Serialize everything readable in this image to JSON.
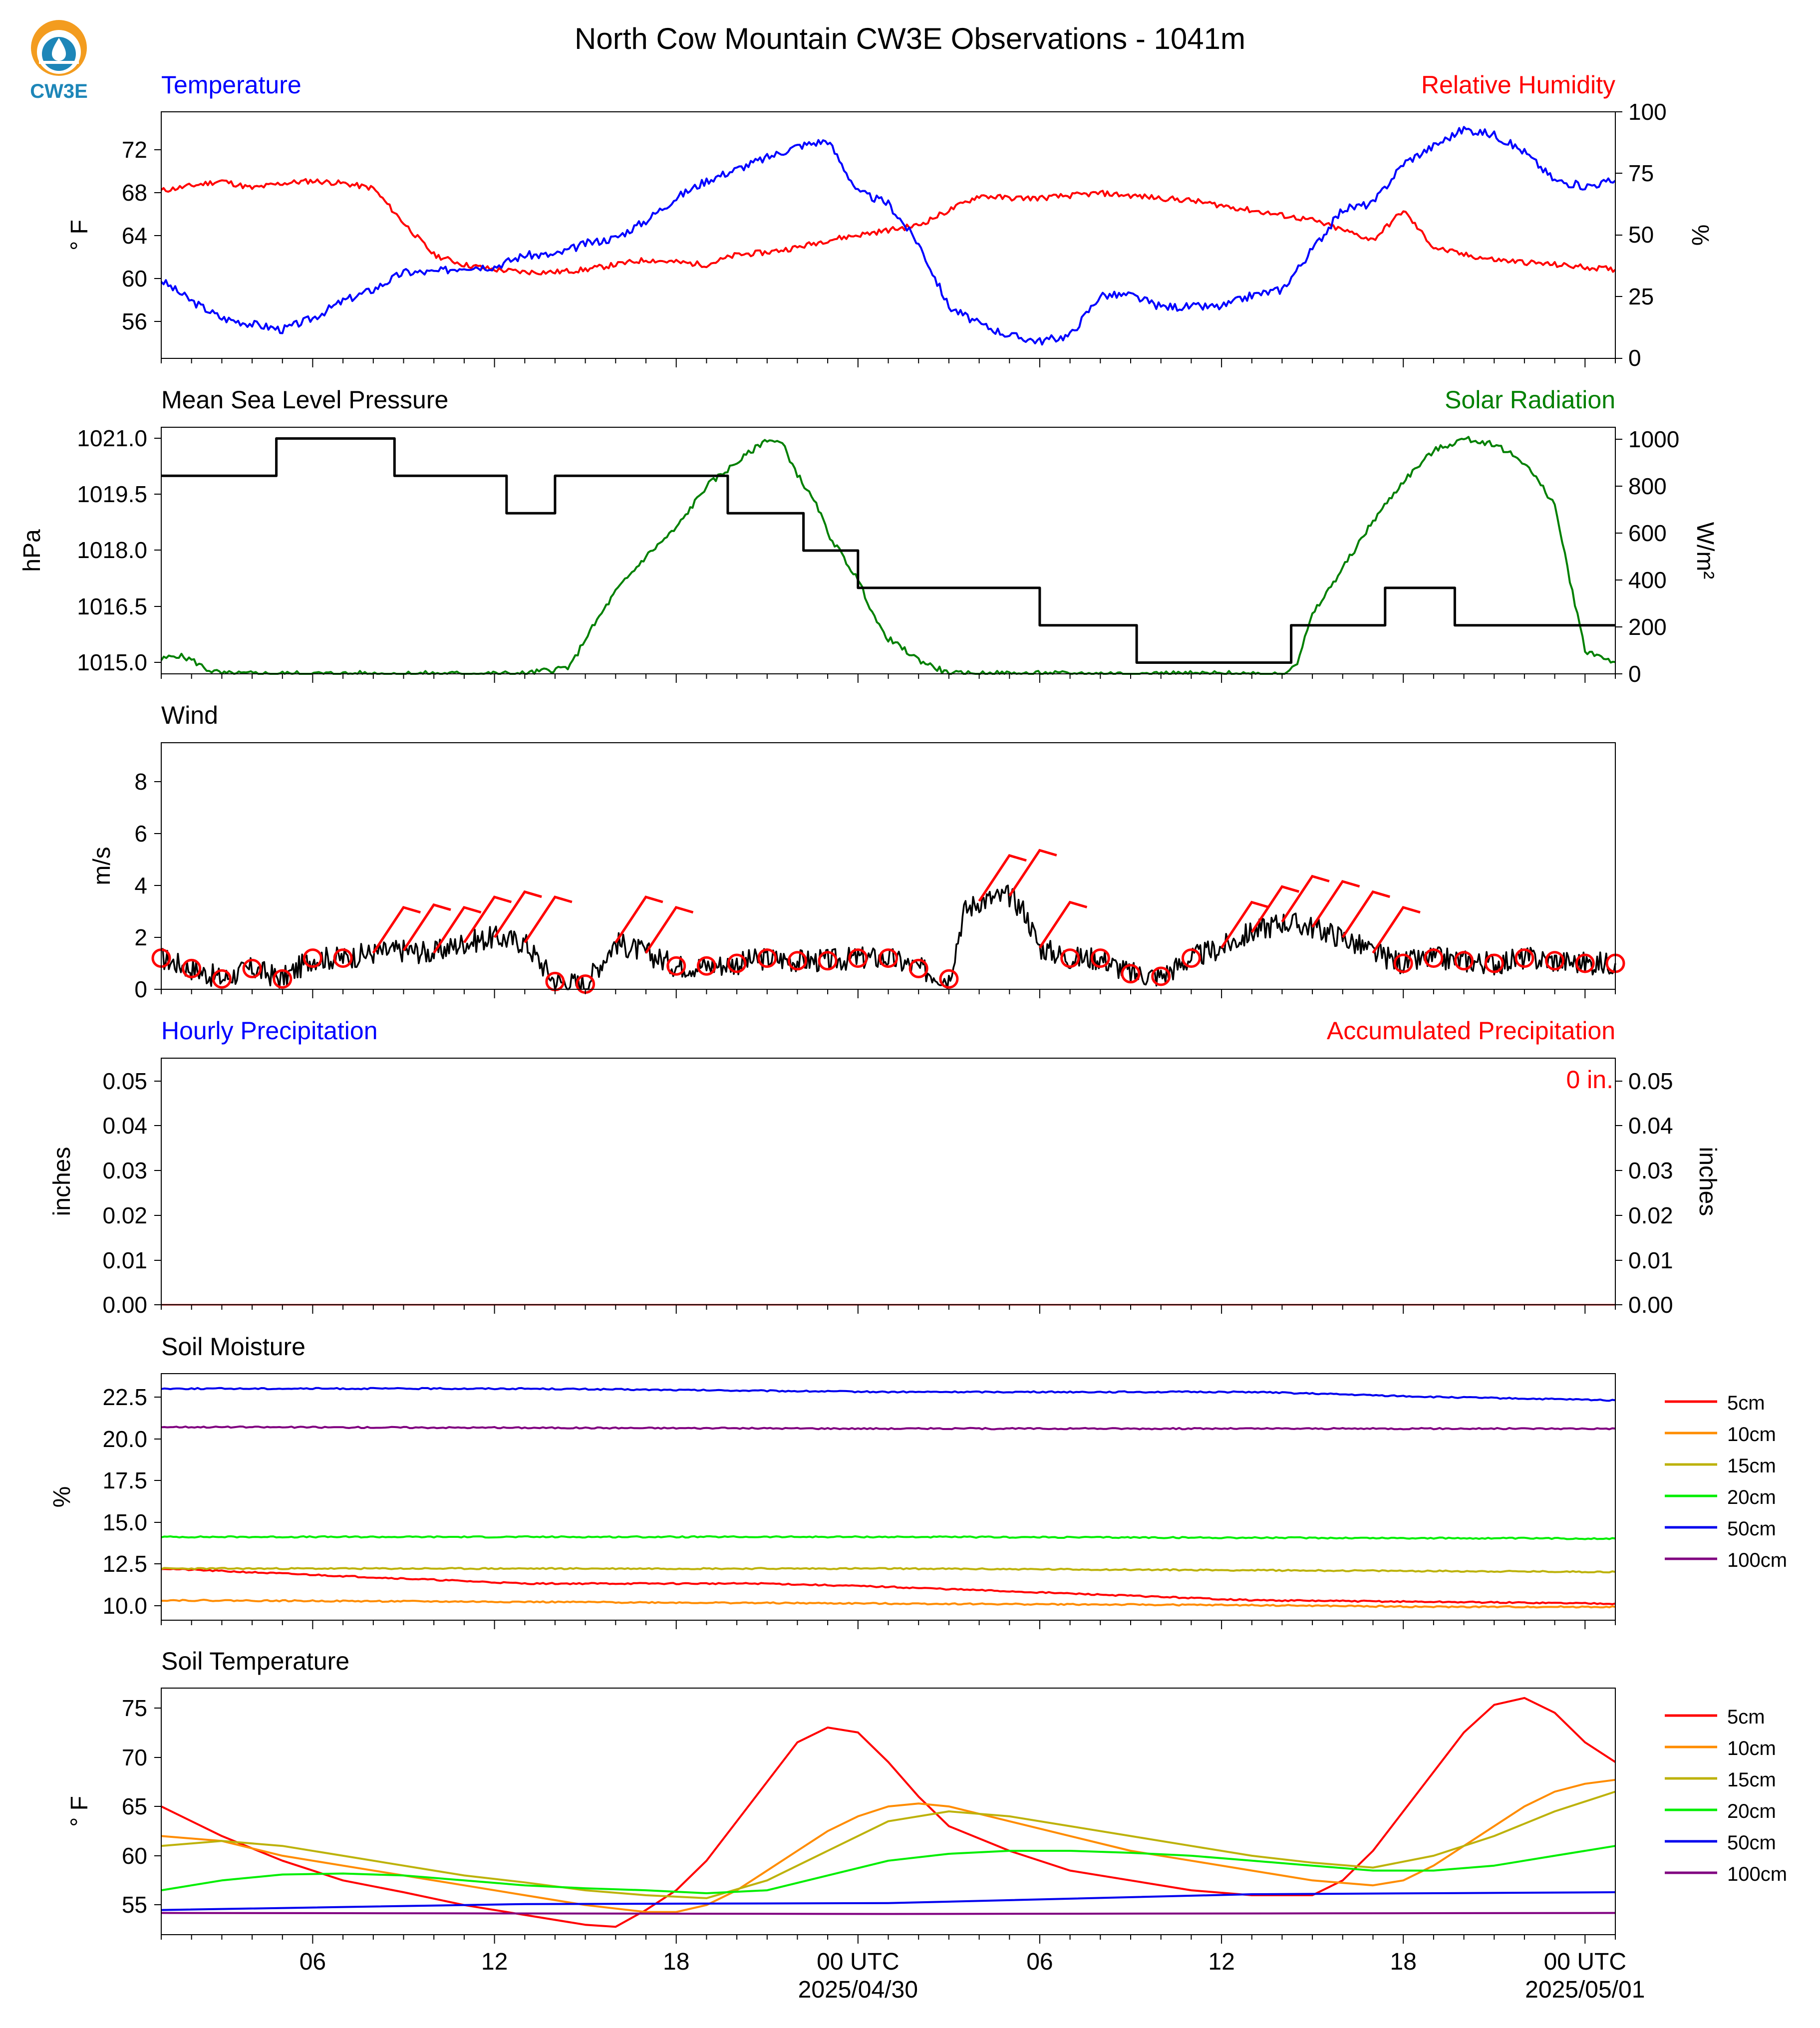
{
  "title": "North Cow Mountain CW3E Observations - 1041m",
  "logo": {
    "text": "CW3E",
    "colors": {
      "orange": "#f39c1f",
      "blue": "#1d86b8"
    }
  },
  "colors": {
    "temperature": "#0000ff",
    "humidity": "#ff0000",
    "pressure": "#000000",
    "solar": "#008000",
    "wind": "#000000",
    "barbs": "#ff0000"
  },
  "time_axis": {
    "range_hours": [
      0,
      48
    ],
    "ticks": [
      {
        "h": 5,
        "label": "06"
      },
      {
        "h": 11,
        "label": "12"
      },
      {
        "h": 17,
        "label": "18"
      },
      {
        "h": 23,
        "label": "00 UTC",
        "date": "2025/04/30"
      },
      {
        "h": 29,
        "label": "06"
      },
      {
        "h": 35,
        "label": "12"
      },
      {
        "h": 41,
        "label": "18"
      },
      {
        "h": 47,
        "label": "00 UTC",
        "date": "2025/05/01"
      }
    ]
  },
  "panels": {
    "temperature": {
      "left_title": "Temperature",
      "right_title": "Relative Humidity",
      "left_unit": "° F",
      "right_unit": "%",
      "left_ticks": [
        "56",
        "60",
        "64",
        "68",
        "72"
      ],
      "right_ticks": [
        "0",
        "25",
        "50",
        "75",
        "100"
      ]
    },
    "pressure": {
      "left_title": "Mean Sea Level Pressure",
      "right_title": "Solar Radiation",
      "left_unit": "hPa",
      "right_unit": "W/m²",
      "left_ticks": [
        "1015.0",
        "1016.5",
        "1018.0",
        "1019.5",
        "1021.0"
      ],
      "right_ticks": [
        "0",
        "200",
        "400",
        "600",
        "800",
        "1000"
      ]
    },
    "wind": {
      "title": "Wind",
      "unit": "m/s",
      "ticks": [
        "0",
        "2",
        "4",
        "6",
        "8"
      ]
    },
    "precip": {
      "left_title": "Hourly Precipitation",
      "right_title": "Accumulated Precipitation",
      "unit": "inches",
      "accum_label": "0 in.",
      "ticks": [
        "0.00",
        "0.01",
        "0.02",
        "0.03",
        "0.04",
        "0.05"
      ]
    },
    "soil_moisture": {
      "title": "Soil Moisture",
      "unit": "%",
      "ticks": [
        "10.0",
        "12.5",
        "15.0",
        "17.5",
        "20.0",
        "22.5"
      ]
    },
    "soil_temp": {
      "title": "Soil Temperature",
      "unit": "° F",
      "ticks": [
        "55",
        "60",
        "65",
        "70",
        "75"
      ]
    }
  },
  "legend": [
    {
      "label": "5cm",
      "color": "#ff0000"
    },
    {
      "label": "10cm",
      "color": "#ff8c00"
    },
    {
      "label": "15cm",
      "color": "#bdb20a"
    },
    {
      "label": "20cm",
      "color": "#00ee00"
    },
    {
      "label": "50cm",
      "color": "#0000ee"
    },
    {
      "label": "100cm",
      "color": "#800080"
    }
  ],
  "chart_data": [
    {
      "type": "line",
      "title": "Temperature",
      "ylabel": "° F",
      "ylim": [
        53.5,
        75
      ],
      "x_unit": "hours since 2025/04/29 01 UTC",
      "series": [
        {
          "name": "Temperature",
          "color": "#0000ff",
          "x": [
            0,
            1,
            2,
            3,
            4,
            5,
            6,
            7,
            8,
            9,
            10,
            11,
            12,
            13,
            14,
            15,
            16,
            17,
            18,
            19,
            20,
            21,
            22,
            23,
            24,
            25,
            26,
            27,
            28,
            29,
            30,
            31,
            32,
            33,
            34,
            35,
            36,
            37,
            38,
            39,
            40,
            41,
            42,
            43,
            44,
            45,
            46,
            47,
            48
          ],
          "values": [
            60.3,
            58.5,
            57,
            56.5,
            56,
            57,
            58.5,
            59.5,
            61,
            61,
            61.5,
            61.5,
            62.5,
            62.5,
            63.5,
            64,
            65.5,
            67.5,
            69,
            70,
            71,
            72,
            72.5,
            68,
            67,
            63.5,
            58,
            56.5,
            55.5,
            55,
            55.5,
            59,
            59,
            58,
            58,
            58,
            59,
            59.5,
            63,
            66.5,
            67,
            70.5,
            72,
            73.5,
            73,
            71.5,
            69,
            68.5,
            69
          ]
        }
      ]
    },
    {
      "type": "line",
      "title": "Relative Humidity",
      "ylabel": "%",
      "ylim": [
        0,
        100
      ],
      "x_unit": "hours since 2025/04/29 01 UTC",
      "series": [
        {
          "name": "Relative Humidity",
          "color": "#ff0000",
          "x": [
            0,
            1,
            2,
            3,
            4,
            5,
            6,
            7,
            8,
            9,
            10,
            11,
            12,
            13,
            14,
            15,
            16,
            17,
            18,
            19,
            20,
            21,
            22,
            23,
            24,
            25,
            26,
            27,
            28,
            29,
            30,
            31,
            32,
            33,
            34,
            35,
            36,
            37,
            38,
            39,
            40,
            41,
            42,
            43,
            44,
            45,
            46,
            47,
            48
          ],
          "values": [
            68,
            70,
            72,
            69,
            71,
            72,
            71,
            69,
            55,
            42,
            38,
            36,
            35,
            35,
            36,
            38,
            40,
            39,
            38,
            42,
            43,
            45,
            48,
            50,
            52,
            54,
            60,
            66,
            65,
            65,
            66,
            67,
            66,
            65,
            64,
            62,
            60,
            58,
            56,
            52,
            48,
            60,
            45,
            42,
            40,
            39,
            38,
            37,
            36
          ]
        }
      ]
    },
    {
      "type": "line",
      "title": "Mean Sea Level Pressure",
      "ylabel": "hPa",
      "ylim": [
        1014.7,
        1021.3
      ],
      "x_unit": "hours since 2025/04/29 01 UTC",
      "series": [
        {
          "name": "Mean Sea Level Pressure",
          "color": "#000000",
          "x": [
            0,
            3.8,
            3.8,
            7.7,
            7.7,
            11.4,
            11.4,
            13,
            13,
            18.7,
            18.7,
            21.2,
            21.2,
            23,
            23,
            29,
            29,
            32.2,
            32.2,
            37.3,
            37.3,
            40.4,
            40.4,
            42.7,
            42.7,
            48
          ],
          "values": [
            1020,
            1020,
            1021,
            1021,
            1020,
            1020,
            1019,
            1019,
            1020,
            1020,
            1019,
            1019,
            1018,
            1018,
            1017,
            1017,
            1016,
            1016,
            1015,
            1015,
            1016,
            1016,
            1017,
            1017,
            1016,
            1016
          ]
        }
      ]
    },
    {
      "type": "line",
      "title": "Solar Radiation",
      "ylabel": "W/m²",
      "ylim": [
        0,
        1050
      ],
      "x_unit": "hours since 2025/04/29 01 UTC",
      "series": [
        {
          "name": "Solar Radiation",
          "color": "#008000",
          "x": [
            0,
            0.5,
            1,
            1.5,
            2,
            12,
            13.5,
            14,
            15,
            16,
            17,
            18,
            19,
            20,
            20.5,
            21,
            21.7,
            22,
            23,
            23.7,
            24,
            25,
            26,
            37,
            37.5,
            38,
            39,
            40,
            41,
            42,
            43,
            44,
            45,
            46,
            46.5,
            47,
            48
          ],
          "values": [
            60,
            80,
            60,
            20,
            0,
            0,
            30,
            150,
            350,
            500,
            620,
            800,
            900,
            1000,
            980,
            850,
            700,
            600,
            400,
            200,
            150,
            60,
            0,
            0,
            50,
            250,
            450,
            650,
            820,
            950,
            1000,
            980,
            900,
            720,
            400,
            100,
            50
          ]
        }
      ]
    },
    {
      "type": "line",
      "title": "Wind",
      "ylabel": "m/s",
      "ylim": [
        0,
        9.5
      ],
      "x_unit": "hours since 2025/04/29 01 UTC",
      "series": [
        {
          "name": "Wind speed",
          "color": "#000000",
          "x": [
            0,
            1,
            2,
            3,
            4,
            5,
            6,
            7,
            8,
            9,
            10,
            11,
            12,
            13,
            14,
            15,
            16,
            17,
            18,
            19,
            20,
            21,
            22,
            23,
            24,
            25,
            26,
            26.5,
            27,
            28,
            28.5,
            29,
            30,
            31,
            32,
            33,
            34,
            35,
            36,
            37,
            38,
            39,
            40,
            41,
            42,
            43,
            44,
            45,
            46,
            47,
            48
          ],
          "values": [
            1.2,
            0.8,
            0.4,
            0.8,
            0.4,
            1.2,
            1.2,
            1.4,
            1.5,
            1.4,
            1.8,
            2,
            1.8,
            0.3,
            0.2,
            1.8,
            1.4,
            0.9,
            0.9,
            1,
            1.2,
            1.1,
            1.1,
            1.2,
            1.2,
            0.8,
            0.4,
            3,
            3.4,
            3.6,
            3,
            1.6,
            1.2,
            1.2,
            0.6,
            0.5,
            1.2,
            1.6,
            2.2,
            2.6,
            2.4,
            2,
            1.4,
            1,
            1.2,
            1.1,
            1,
            1.2,
            1.1,
            1,
            1
          ]
        }
      ]
    },
    {
      "type": "line",
      "title": "Hourly Precipitation",
      "ylabel": "inches",
      "ylim": [
        0,
        0.055
      ],
      "x_unit": "hours since 2025/04/29 01 UTC",
      "series": [
        {
          "name": "Hourly Precipitation",
          "color": "#0000ff",
          "x": [
            0,
            48
          ],
          "values": [
            0,
            0
          ]
        },
        {
          "name": "Accumulated Precipitation",
          "color": "#ff0000",
          "x": [
            0,
            48
          ],
          "values": [
            0,
            0
          ]
        }
      ]
    },
    {
      "type": "line",
      "title": "Soil Moisture",
      "ylabel": "%",
      "ylim": [
        9.2,
        24
      ],
      "x_unit": "hours since 2025/04/29 01 UTC",
      "series": [
        {
          "name": "5cm",
          "color": "#ff0000",
          "x": [
            0,
            12,
            20,
            24,
            30,
            36,
            42,
            48
          ],
          "values": [
            12.3,
            11.4,
            11.4,
            11.2,
            10.8,
            10.4,
            10.3,
            10.2
          ]
        },
        {
          "name": "10cm",
          "color": "#ff8c00",
          "x": [
            0,
            12,
            24,
            36,
            42,
            48
          ],
          "values": [
            10.4,
            10.3,
            10.2,
            10.1,
            10,
            10
          ]
        },
        {
          "name": "15cm",
          "color": "#bdb20a",
          "x": [
            0,
            24,
            48
          ],
          "values": [
            12.3,
            12.3,
            12.1
          ]
        },
        {
          "name": "20cm",
          "color": "#00ee00",
          "x": [
            0,
            24,
            48
          ],
          "values": [
            14.2,
            14.2,
            14.1
          ]
        },
        {
          "name": "50cm",
          "color": "#0000ee",
          "x": [
            0,
            12,
            24,
            36,
            42,
            48
          ],
          "values": [
            23.1,
            23.1,
            22.9,
            22.9,
            22.6,
            22.4
          ]
        },
        {
          "name": "100cm",
          "color": "#800080",
          "x": [
            0,
            24,
            48
          ],
          "values": [
            20.8,
            20.7,
            20.7
          ]
        }
      ]
    },
    {
      "type": "line",
      "title": "Soil Temperature",
      "ylabel": "° F",
      "ylim": [
        52.5,
        77.5
      ],
      "x_unit": "hours since 2025/04/29 01 UTC",
      "series": [
        {
          "name": "5cm",
          "color": "#ff0000",
          "x": [
            0,
            2,
            4,
            6,
            8,
            10,
            12,
            14,
            15,
            16,
            17,
            18,
            19,
            20,
            21,
            22,
            23,
            24,
            25,
            26,
            28,
            30,
            32,
            34,
            36,
            38,
            39,
            40,
            41,
            42,
            43,
            44,
            45,
            46,
            47,
            48
          ],
          "values": [
            65.5,
            62.5,
            60,
            58,
            56.8,
            55.5,
            54.5,
            53.5,
            53.3,
            55,
            57,
            60,
            64,
            68,
            72,
            73.5,
            73,
            70,
            66.5,
            63.5,
            61,
            59,
            58,
            57,
            56.5,
            56.5,
            58,
            61,
            65,
            69,
            73,
            75.8,
            76.5,
            75,
            72,
            70
          ]
        },
        {
          "name": "10cm",
          "color": "#ff8c00",
          "x": [
            0,
            2,
            4,
            6,
            8,
            10,
            12,
            14,
            16,
            17,
            18,
            19,
            20,
            21,
            22,
            23,
            24,
            25,
            26,
            28,
            30,
            32,
            34,
            36,
            38,
            40,
            41,
            42,
            43,
            44,
            45,
            46,
            47,
            48
          ],
          "values": [
            62.5,
            62,
            60.5,
            59.5,
            58.5,
            57.5,
            56.5,
            55.5,
            54.8,
            54.8,
            55.5,
            57,
            59,
            61,
            63,
            64.5,
            65.5,
            65.8,
            65.5,
            64,
            62.5,
            61,
            60,
            59,
            58,
            57.5,
            58,
            59.5,
            61.5,
            63.5,
            65.5,
            67,
            67.8,
            68.2
          ]
        },
        {
          "name": "15cm",
          "color": "#bdb20a",
          "x": [
            0,
            2,
            4,
            6,
            8,
            10,
            12,
            14,
            16,
            18,
            20,
            22,
            24,
            26,
            28,
            30,
            32,
            34,
            36,
            38,
            40,
            42,
            44,
            46,
            48
          ],
          "values": [
            61.5,
            62,
            61.5,
            60.5,
            59.5,
            58.5,
            57.8,
            57,
            56.5,
            56.2,
            58,
            61,
            64,
            65,
            64.5,
            63.5,
            62.5,
            61.5,
            60.5,
            59.8,
            59.3,
            60.5,
            62.5,
            65,
            67
          ]
        },
        {
          "name": "20cm",
          "color": "#00ee00",
          "x": [
            0,
            2,
            4,
            6,
            8,
            10,
            12,
            14,
            16,
            18,
            20,
            22,
            24,
            26,
            28,
            30,
            32,
            34,
            36,
            38,
            40,
            42,
            44,
            46,
            48
          ],
          "values": [
            57,
            58,
            58.6,
            58.7,
            58.5,
            58,
            57.5,
            57.2,
            57,
            56.7,
            57,
            58.5,
            60,
            60.7,
            61,
            61,
            60.8,
            60.5,
            60,
            59.5,
            59,
            59,
            59.5,
            60.5,
            61.5
          ]
        },
        {
          "name": "50cm",
          "color": "#0000ee",
          "x": [
            0,
            12,
            24,
            36,
            42,
            48
          ],
          "values": [
            55,
            55.6,
            55.7,
            56.6,
            56.7,
            56.8
          ]
        },
        {
          "name": "100cm",
          "color": "#800080",
          "x": [
            0,
            24,
            48
          ],
          "values": [
            54.7,
            54.6,
            54.7
          ]
        }
      ]
    }
  ]
}
